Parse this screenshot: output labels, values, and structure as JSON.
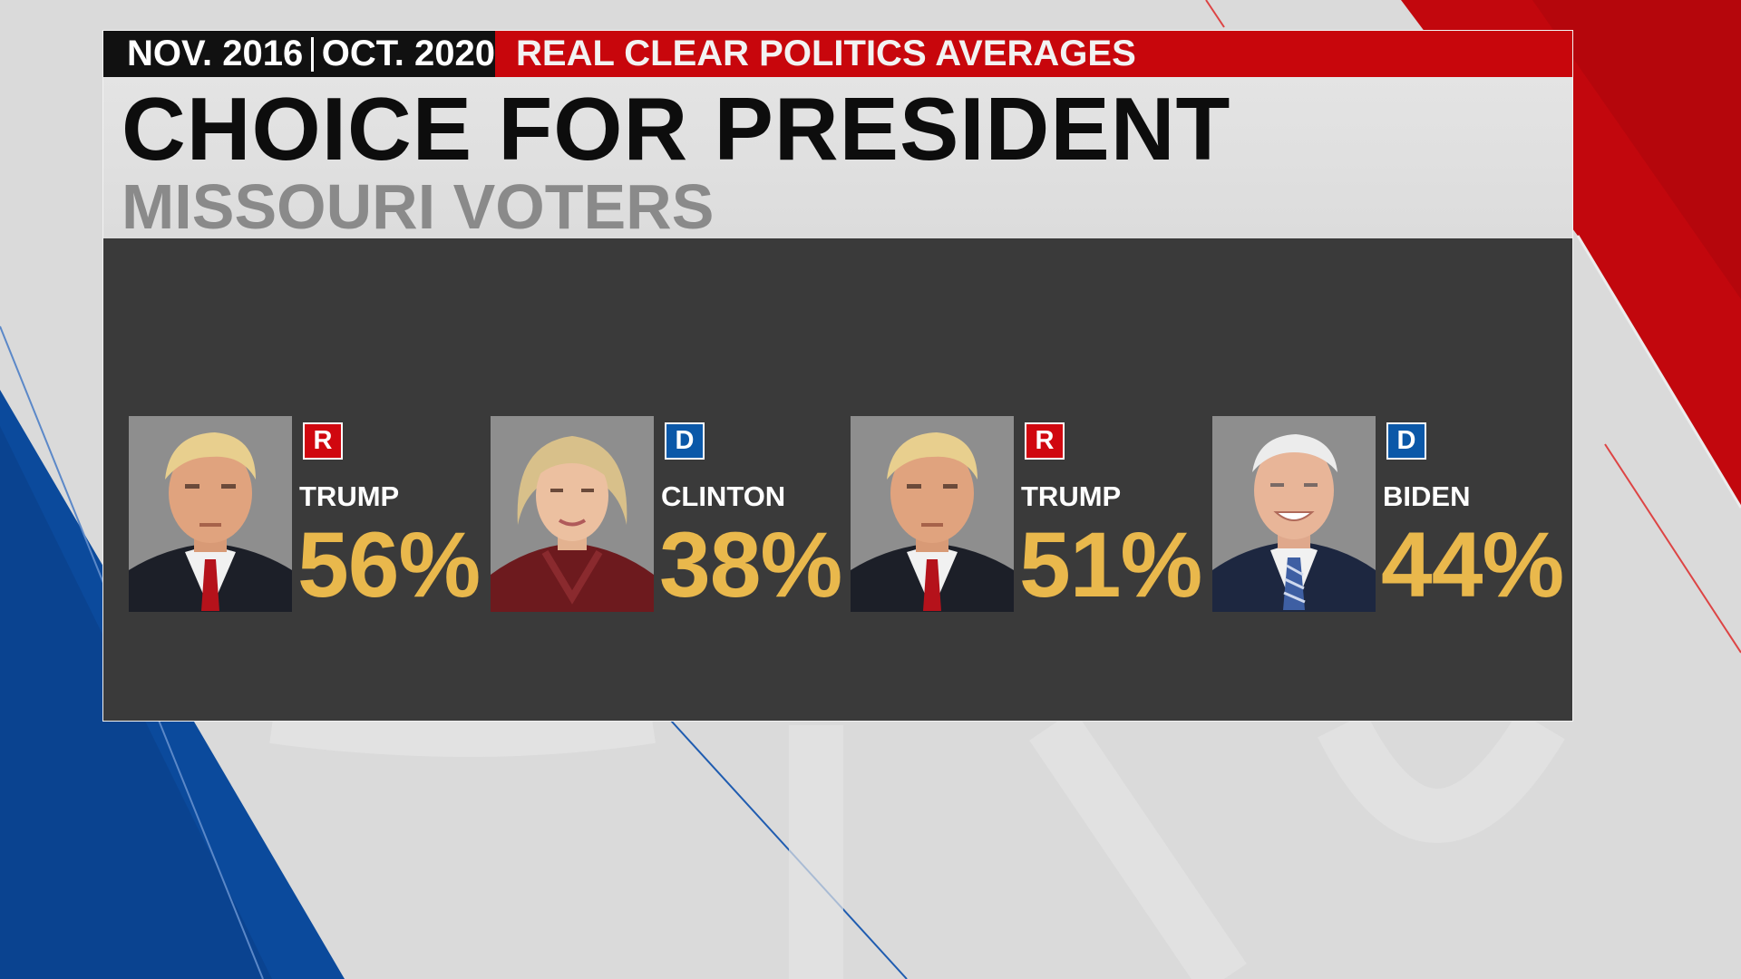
{
  "header": {
    "dates_left": "NOV. 2016",
    "dates_right": "OCT. 2020",
    "source": "REAL CLEAR POLITICS AVERAGES",
    "title": "CHOICE FOR PRESIDENT",
    "subtitle": "MISSOURI VOTERS"
  },
  "candidates": [
    {
      "name": "TRUMP",
      "party": "R",
      "percent": "56%",
      "portrait": "trump-portrait"
    },
    {
      "name": "CLINTON",
      "party": "D",
      "percent": "38%",
      "portrait": "clinton-portrait"
    },
    {
      "name": "TRUMP",
      "party": "R",
      "percent": "51%",
      "portrait": "trump-portrait"
    },
    {
      "name": "BIDEN",
      "party": "D",
      "percent": "44%",
      "portrait": "biden-portrait"
    }
  ],
  "colors": {
    "republican": "#d0070f",
    "democrat": "#0b58a8",
    "percent": "#e9b84c",
    "panel": "#3a3a3a"
  }
}
